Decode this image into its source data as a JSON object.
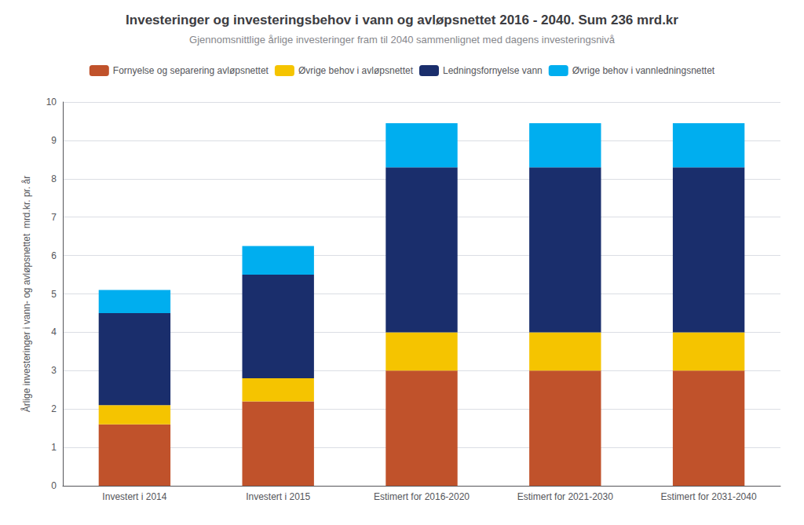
{
  "chart_data": {
    "type": "bar",
    "stacked": true,
    "title": "Investeringer og investeringsbehov i vann og avløpsnettet 2016 - 2040. Sum 236 mrd.kr",
    "subtitle": "Gjennomsnittlige årlige investeringer fram til 2040 sammenlignet med dagens investeringsnivå",
    "ylabel": "Årlige investeringer i vann- og avløpsnettet  mrd.kr. pr. år",
    "categories": [
      "Investert i 2014",
      "Investert i 2015",
      "Estimert for 2016-2020",
      "Estimert for 2021-2030",
      "Estimert for 2031-2040"
    ],
    "series": [
      {
        "name": "Fornyelse og separering avløpsnettet",
        "color": "#C0522B",
        "values": [
          1.6,
          2.2,
          3.0,
          3.0,
          3.0
        ]
      },
      {
        "name": "Øvrige behov i avløpsnettet",
        "color": "#F5C400",
        "values": [
          0.5,
          0.6,
          1.0,
          1.0,
          1.0
        ]
      },
      {
        "name": "Ledningsfornyelse vann",
        "color": "#1A2E6C",
        "values": [
          2.4,
          2.7,
          4.3,
          4.3,
          4.3
        ]
      },
      {
        "name": "Øvrige behov i vannledningsnettet",
        "color": "#00AEEF",
        "values": [
          0.6,
          0.75,
          1.15,
          1.15,
          1.15
        ]
      }
    ],
    "ylim": [
      0,
      10
    ],
    "yticks": [
      0,
      1,
      2,
      3,
      4,
      5,
      6,
      7,
      8,
      9,
      10
    ],
    "grid": true,
    "legend": "top"
  }
}
